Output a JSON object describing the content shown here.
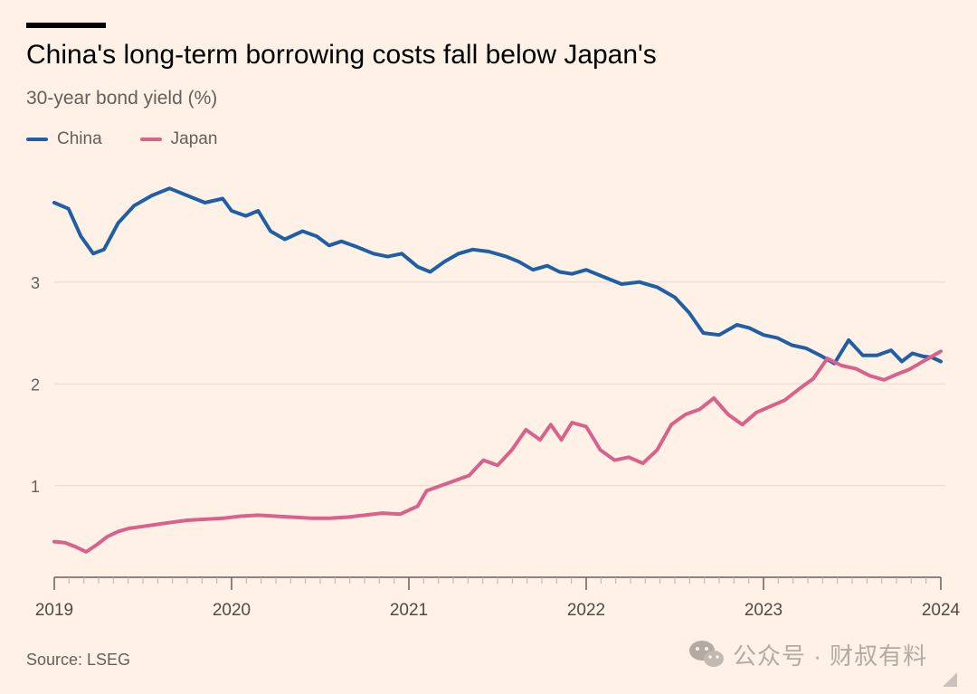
{
  "chart_data": {
    "type": "line",
    "title": "China's long-term borrowing costs fall below Japan's",
    "subtitle": "30-year bond yield (%)",
    "xlabel": "",
    "ylabel": "30-year bond yield (%)",
    "xlim": [
      2019,
      2024
    ],
    "ylim": [
      0.1,
      4.1
    ],
    "grid": true,
    "legend_position": "top-left",
    "x_ticks": [
      2019,
      2020,
      2021,
      2022,
      2023,
      2024
    ],
    "x_tick_labels": [
      "2019",
      "2020",
      "2021",
      "2022",
      "2023",
      "2024"
    ],
    "y_ticks": [
      1,
      2,
      3
    ],
    "y_tick_labels": [
      "1",
      "2",
      "3"
    ],
    "series": [
      {
        "name": "China",
        "color": "#1F5FA6",
        "x": [
          2019.0,
          2019.08,
          2019.15,
          2019.22,
          2019.28,
          2019.36,
          2019.45,
          2019.55,
          2019.65,
          2019.75,
          2019.85,
          2019.95,
          2020.0,
          2020.08,
          2020.15,
          2020.22,
          2020.3,
          2020.4,
          2020.48,
          2020.55,
          2020.62,
          2020.7,
          2020.8,
          2020.88,
          2020.96,
          2021.05,
          2021.12,
          2021.2,
          2021.28,
          2021.36,
          2021.45,
          2021.55,
          2021.62,
          2021.7,
          2021.78,
          2021.85,
          2021.92,
          2022.0,
          2022.1,
          2022.2,
          2022.3,
          2022.4,
          2022.5,
          2022.58,
          2022.66,
          2022.75,
          2022.85,
          2022.92,
          2023.0,
          2023.08,
          2023.16,
          2023.24,
          2023.32,
          2023.4,
          2023.48,
          2023.56,
          2023.64,
          2023.72,
          2023.78,
          2023.84,
          2023.9,
          2023.95,
          2024.0
        ],
        "values": [
          3.78,
          3.72,
          3.45,
          3.28,
          3.32,
          3.58,
          3.75,
          3.85,
          3.92,
          3.85,
          3.78,
          3.82,
          3.7,
          3.65,
          3.7,
          3.5,
          3.42,
          3.5,
          3.45,
          3.36,
          3.4,
          3.35,
          3.28,
          3.25,
          3.28,
          3.15,
          3.1,
          3.2,
          3.28,
          3.32,
          3.3,
          3.25,
          3.2,
          3.12,
          3.16,
          3.1,
          3.08,
          3.12,
          3.05,
          2.98,
          3.0,
          2.95,
          2.85,
          2.7,
          2.5,
          2.48,
          2.58,
          2.55,
          2.48,
          2.45,
          2.38,
          2.35,
          2.28,
          2.2,
          2.43,
          2.28,
          2.28,
          2.33,
          2.22,
          2.3,
          2.27,
          2.26,
          2.22
        ]
      },
      {
        "name": "Japan",
        "color": "#D9628B",
        "x": [
          2019.0,
          2019.06,
          2019.12,
          2019.18,
          2019.24,
          2019.3,
          2019.36,
          2019.42,
          2019.5,
          2019.58,
          2019.66,
          2019.75,
          2019.85,
          2019.95,
          2020.05,
          2020.15,
          2020.25,
          2020.35,
          2020.45,
          2020.55,
          2020.65,
          2020.75,
          2020.85,
          2020.95,
          2021.05,
          2021.1,
          2021.18,
          2021.26,
          2021.34,
          2021.42,
          2021.5,
          2021.58,
          2021.66,
          2021.74,
          2021.8,
          2021.86,
          2021.92,
          2022.0,
          2022.08,
          2022.16,
          2022.24,
          2022.32,
          2022.4,
          2022.48,
          2022.56,
          2022.64,
          2022.72,
          2022.8,
          2022.88,
          2022.96,
          2023.04,
          2023.12,
          2023.2,
          2023.28,
          2023.36,
          2023.44,
          2023.52,
          2023.6,
          2023.68,
          2023.76,
          2023.82,
          2023.88,
          2023.94,
          2024.0
        ],
        "values": [
          0.45,
          0.44,
          0.4,
          0.35,
          0.42,
          0.5,
          0.55,
          0.58,
          0.6,
          0.62,
          0.64,
          0.66,
          0.67,
          0.68,
          0.7,
          0.71,
          0.7,
          0.69,
          0.68,
          0.68,
          0.69,
          0.71,
          0.73,
          0.72,
          0.8,
          0.95,
          1.0,
          1.05,
          1.1,
          1.25,
          1.2,
          1.35,
          1.55,
          1.45,
          1.6,
          1.45,
          1.62,
          1.58,
          1.35,
          1.25,
          1.28,
          1.22,
          1.35,
          1.6,
          1.7,
          1.75,
          1.86,
          1.7,
          1.6,
          1.72,
          1.78,
          1.84,
          1.95,
          2.05,
          2.25,
          2.18,
          2.15,
          2.08,
          2.04,
          2.1,
          2.14,
          2.2,
          2.26,
          2.32
        ]
      }
    ],
    "source_label": "Source: LSEG"
  },
  "watermark": {
    "text": "公众号 · 财叔有料",
    "icon": "wechat-icon"
  }
}
